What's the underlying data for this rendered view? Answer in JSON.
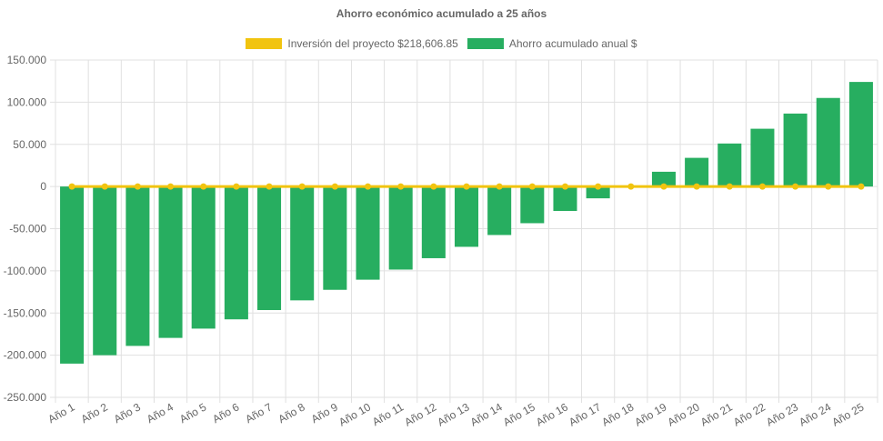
{
  "chart_data": {
    "type": "bar",
    "title": "Ahorro económico acumulado a 25 años",
    "categories": [
      "Año 1",
      "Año 2",
      "Año 3",
      "Año 4",
      "Año 5",
      "Año 6",
      "Año 7",
      "Año 8",
      "Año 9",
      "Año 10",
      "Año 11",
      "Año 12",
      "Año 13",
      "Año 14",
      "Año 15",
      "Año 16",
      "Año 17",
      "Año 18",
      "Año 19",
      "Año 20",
      "Año 21",
      "Año 22",
      "Año 23",
      "Año 24",
      "Año 25"
    ],
    "series": [
      {
        "name": "Inversión del proyecto $218,606.85",
        "type": "line",
        "color": "#f1c40f",
        "values": [
          0,
          0,
          0,
          0,
          0,
          0,
          0,
          0,
          0,
          0,
          0,
          0,
          0,
          0,
          0,
          0,
          0,
          0,
          0,
          0,
          0,
          0,
          0,
          0,
          0
        ]
      },
      {
        "name": "Ahorro acumulado anual $",
        "type": "bar",
        "color": "#27ae60",
        "values": [
          -210000,
          -200000,
          -189000,
          -179500,
          -168500,
          -157500,
          -146500,
          -135000,
          -122500,
          -110500,
          -98500,
          -85000,
          -71500,
          -57500,
          -43500,
          -29000,
          -14000,
          1000,
          17500,
          34000,
          51000,
          68500,
          86500,
          105000,
          124000
        ]
      }
    ],
    "ylim": [
      -250000,
      150000
    ],
    "yticks": [
      {
        "value": 150000,
        "label": "150.000"
      },
      {
        "value": 100000,
        "label": "100.000"
      },
      {
        "value": 50000,
        "label": "50.000"
      },
      {
        "value": 0,
        "label": "0"
      },
      {
        "value": -50000,
        "label": "-50.000"
      },
      {
        "value": -100000,
        "label": "-100.000"
      },
      {
        "value": -150000,
        "label": "-150.000"
      },
      {
        "value": -200000,
        "label": "-200.000"
      },
      {
        "value": -250000,
        "label": "-250.000"
      }
    ],
    "grid": true,
    "legend_position": "top"
  }
}
